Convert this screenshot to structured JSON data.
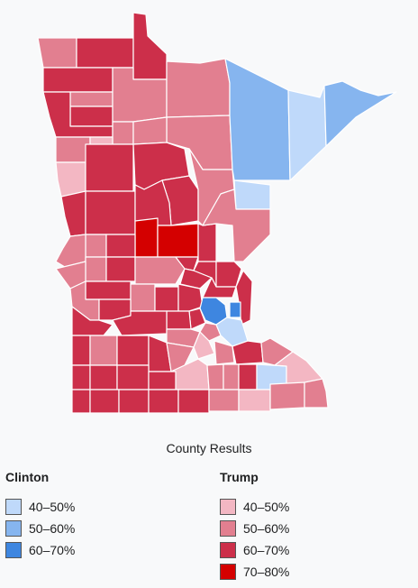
{
  "caption": "County Results",
  "colors": {
    "c40": "#bfd9fa",
    "c50": "#86b5ef",
    "c60": "#3e86e0",
    "t40": "#f3b7c3",
    "t50": "#e27f90",
    "t60": "#cc2f4a",
    "t70": "#d40000"
  },
  "legend": {
    "clinton": {
      "title": "Clinton",
      "items": [
        {
          "label": "40–50%",
          "color": "#bfd9fa"
        },
        {
          "label": "50–60%",
          "color": "#86b5ef"
        },
        {
          "label": "60–70%",
          "color": "#3e86e0"
        }
      ]
    },
    "trump": {
      "title": "Trump",
      "items": [
        {
          "label": "40–50%",
          "color": "#f3b7c3"
        },
        {
          "label": "50–60%",
          "color": "#e27f90"
        },
        {
          "label": "60–70%",
          "color": "#cc2f4a"
        },
        {
          "label": "70–80%",
          "color": "#d40000"
        }
      ]
    }
  }
}
